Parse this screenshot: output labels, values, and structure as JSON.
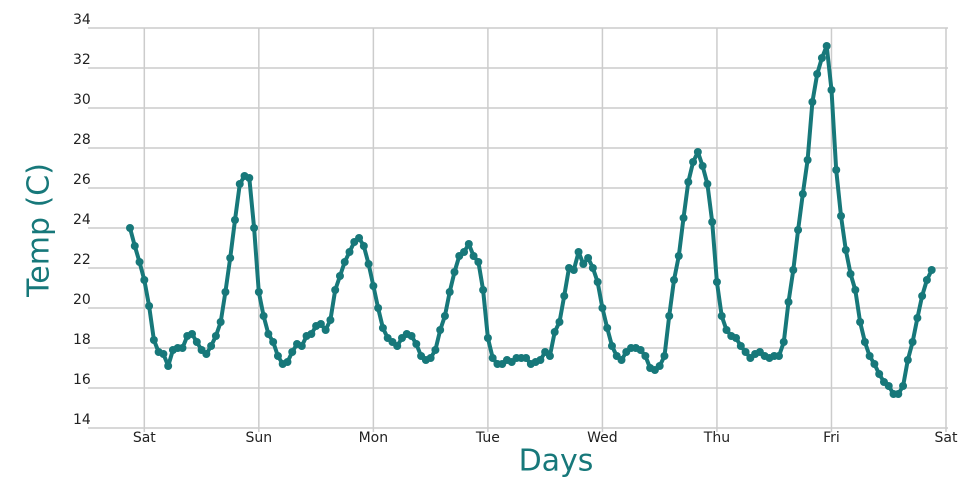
{
  "chart_data": {
    "type": "line",
    "xlabel": "Days",
    "ylabel": "Temp (C)",
    "categories": [
      null,
      null,
      null,
      "Sat",
      null,
      null,
      null,
      null,
      null,
      null,
      null,
      null,
      null,
      null,
      null,
      null,
      null,
      null,
      null,
      null,
      null,
      null,
      null,
      null,
      null,
      null,
      null,
      "Sun",
      null,
      null,
      null,
      null,
      null,
      null,
      null,
      null,
      null,
      null,
      null,
      null,
      null,
      null,
      null,
      null,
      null,
      null,
      null,
      null,
      null,
      null,
      null,
      "Mon",
      null,
      null,
      null,
      null,
      null,
      null,
      null,
      null,
      null,
      null,
      null,
      null,
      null,
      null,
      null,
      null,
      null,
      null,
      null,
      null,
      null,
      null,
      null,
      "Tue",
      null,
      null,
      null,
      null,
      null,
      null,
      null,
      null,
      null,
      null,
      null,
      null,
      null,
      null,
      null,
      null,
      null,
      null,
      null,
      null,
      null,
      null,
      null,
      "Wed",
      null,
      null,
      null,
      null,
      null,
      null,
      null,
      null,
      null,
      null,
      null,
      null,
      null,
      null,
      null,
      null,
      null,
      null,
      null,
      null,
      null,
      null,
      null,
      "Thu",
      null,
      null,
      null,
      null,
      null,
      null,
      null,
      null,
      null,
      null,
      null,
      null,
      null,
      null,
      null,
      null,
      null,
      null,
      null,
      null,
      null,
      null,
      null,
      "Fri",
      null,
      null,
      null,
      null,
      null,
      null,
      null,
      null,
      null,
      null,
      null,
      null,
      null,
      null,
      null,
      null,
      null,
      null,
      null,
      null,
      null,
      null,
      null,
      "Sat"
    ],
    "series": [
      {
        "name": "Temp",
        "color": "#17787a",
        "values": [
          24.0,
          23.1,
          22.3,
          21.4,
          20.1,
          18.4,
          17.8,
          17.7,
          17.1,
          17.9,
          18.0,
          18.0,
          18.6,
          18.7,
          18.3,
          17.9,
          17.7,
          18.1,
          18.6,
          19.3,
          20.8,
          22.5,
          24.4,
          26.2,
          26.6,
          26.5,
          24.0,
          20.8,
          19.6,
          18.7,
          18.3,
          17.6,
          17.2,
          17.3,
          17.8,
          18.2,
          18.1,
          18.6,
          18.7,
          19.1,
          19.2,
          18.9,
          19.4,
          20.9,
          21.6,
          22.3,
          22.8,
          23.3,
          23.5,
          23.1,
          22.2,
          21.1,
          20.0,
          19.0,
          18.5,
          18.3,
          18.1,
          18.5,
          18.7,
          18.6,
          18.2,
          17.6,
          17.4,
          17.5,
          17.9,
          18.9,
          19.6,
          20.8,
          21.8,
          22.6,
          22.8,
          23.2,
          22.6,
          22.3,
          20.9,
          18.5,
          17.5,
          17.2,
          17.2,
          17.4,
          17.3,
          17.5,
          17.5,
          17.5,
          17.2,
          17.3,
          17.4,
          17.8,
          17.6,
          18.8,
          19.3,
          20.6,
          22.0,
          21.9,
          22.8,
          22.2,
          22.5,
          22.0,
          21.3,
          20.0,
          19.0,
          18.1,
          17.6,
          17.4,
          17.8,
          18.0,
          18.0,
          17.9,
          17.6,
          17.0,
          16.9,
          17.1,
          17.6,
          19.6,
          21.4,
          22.6,
          24.5,
          26.3,
          27.3,
          27.8,
          27.1,
          26.2,
          24.3,
          21.3,
          19.6,
          18.9,
          18.6,
          18.5,
          18.1,
          17.8,
          17.5,
          17.7,
          17.8,
          17.6,
          17.5,
          17.6,
          17.6,
          18.3,
          20.3,
          21.9,
          23.9,
          25.7,
          27.4,
          30.3,
          31.7,
          32.5,
          33.1,
          30.9,
          26.9,
          24.6,
          22.9,
          21.7,
          20.9,
          19.3,
          18.3,
          17.6,
          17.2,
          16.7,
          16.3,
          16.1,
          15.7,
          15.7,
          16.1,
          17.4,
          18.3,
          19.5,
          20.6,
          21.4,
          21.9,
          null,
          null,
          null
        ]
      }
    ],
    "ylim": [
      14,
      34
    ],
    "yticks": [
      14,
      16,
      18,
      20,
      22,
      24,
      26,
      28,
      30,
      32,
      34
    ],
    "grid": true
  }
}
